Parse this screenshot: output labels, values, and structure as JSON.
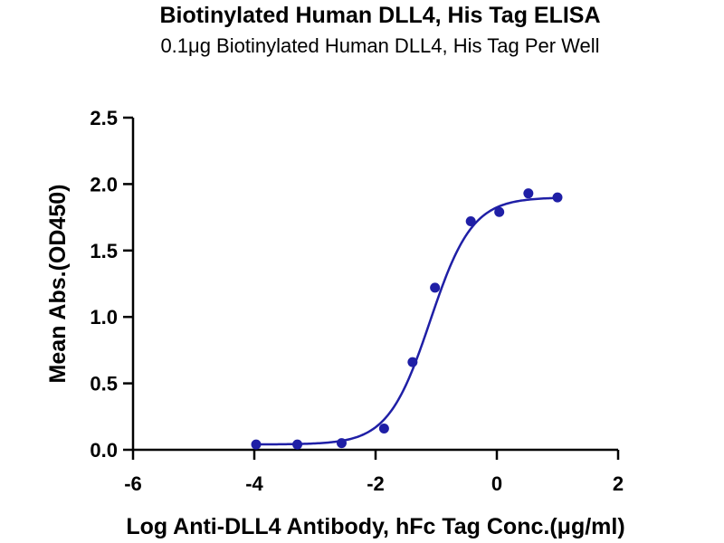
{
  "chart_data": {
    "type": "scatter",
    "title": "Biotinylated Human DLL4, His Tag ELISA",
    "subtitle": "0.1μg Biotinylated Human DLL4, His Tag Per Well",
    "xlabel": "Log Anti-DLL4 Antibody, hFc Tag Conc.(μg/ml)",
    "ylabel": "Mean Abs.(OD450)",
    "xlim": [
      -6,
      2
    ],
    "ylim": [
      0,
      2.5
    ],
    "x_ticks": [
      -6,
      -4,
      -2,
      0,
      2
    ],
    "y_ticks": [
      0.0,
      0.5,
      1.0,
      1.5,
      2.0,
      2.5
    ],
    "x_tick_labels": [
      "-6",
      "-4",
      "-2",
      "0",
      "2"
    ],
    "y_tick_labels": [
      "0.0",
      "0.5",
      "1.0",
      "1.5",
      "2.0",
      "2.5"
    ],
    "grid": false,
    "legend": "none",
    "color": "#1f1fa6",
    "points": {
      "x": [
        -3.97,
        -3.29,
        -2.56,
        -1.86,
        -1.39,
        -1.02,
        -0.43,
        0.04,
        0.52,
        1.0
      ],
      "y": [
        0.04,
        0.04,
        0.05,
        0.16,
        0.66,
        1.22,
        1.72,
        1.79,
        1.93,
        1.9
      ]
    },
    "fit_curve": {
      "model": "4PL",
      "x_range": [
        -4,
        1
      ],
      "bottom": 0.04,
      "top": 1.9,
      "log_ec50": -1.1,
      "hill_slope": 1.25
    }
  }
}
